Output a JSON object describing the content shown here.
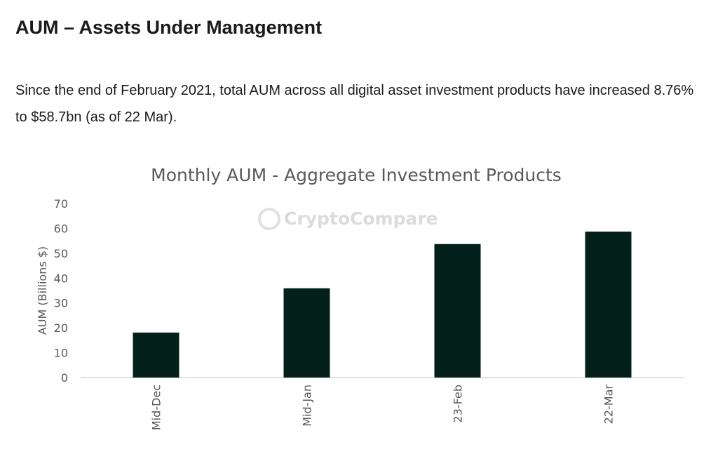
{
  "article": {
    "heading": "AUM – Assets Under Management",
    "paragraph": "Since the end of February 2021, total AUM across all digital asset investment products have increased 8.76% to $58.7bn (as of 22 Mar)."
  },
  "chart_data": {
    "type": "bar",
    "title": "Monthly AUM - Aggregate Investment Products",
    "watermark": "CryptoCompare",
    "xlabel": "",
    "ylabel": "AUM (Billions $)",
    "ylim": [
      0,
      70
    ],
    "yticks": [
      0,
      10,
      20,
      30,
      40,
      50,
      60,
      70
    ],
    "categories": [
      "Mid-Dec",
      "Mid-Jan",
      "23-Feb",
      "22-Mar"
    ],
    "values": [
      18.1,
      35.9,
      53.7,
      58.7
    ],
    "bar_color": "#03201a",
    "grid": false,
    "legend": "none"
  }
}
